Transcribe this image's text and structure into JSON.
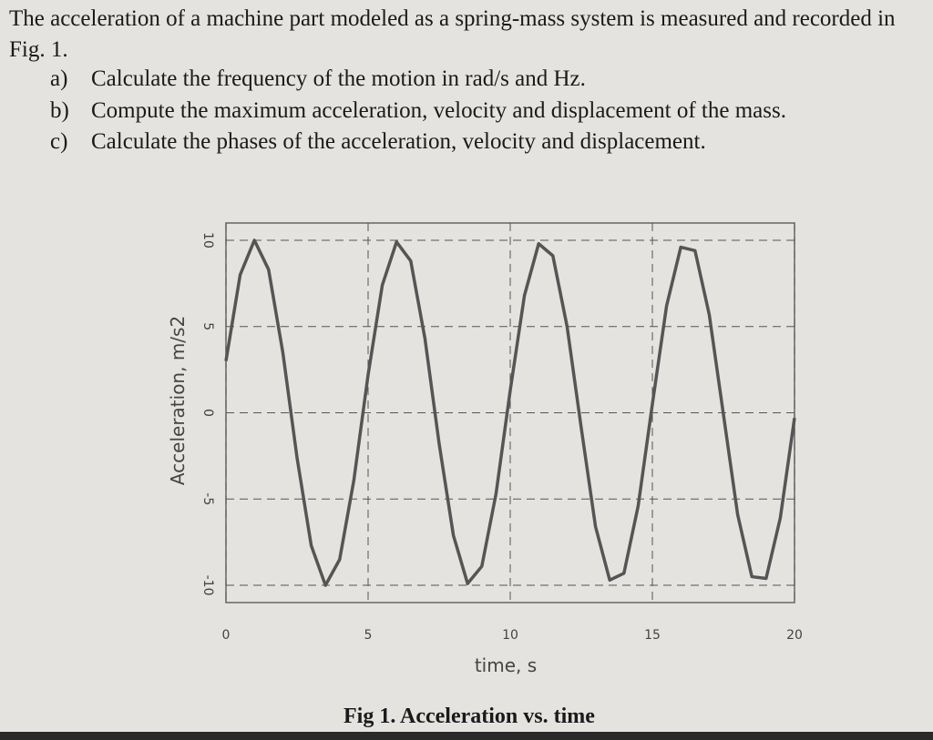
{
  "question": {
    "intro": "The acceleration of a machine part modeled as a spring-mass system is measured and recorded in Fig. 1.",
    "parts": [
      {
        "label": "a)",
        "text": "Calculate the frequency of the motion in rad/s and Hz."
      },
      {
        "label": "b)",
        "text": "Compute the maximum acceleration, velocity and displacement of the mass."
      },
      {
        "label": "c)",
        "text": "Calculate the phases of the acceleration, velocity and displacement."
      }
    ]
  },
  "chart_data": {
    "type": "line",
    "x_label": "time, s",
    "y_label": "Acceleration, m/s2",
    "x": [
      0,
      0.5,
      1,
      1.5,
      2,
      2.5,
      3,
      3.5,
      4,
      4.5,
      5,
      5.5,
      6,
      6.5,
      7,
      7.5,
      8,
      8.5,
      9,
      9.5,
      10,
      10.5,
      11,
      11.5,
      12,
      12.5,
      13,
      13.5,
      14,
      14.5,
      15,
      15.5,
      16,
      16.5,
      17,
      17.5,
      18,
      18.5,
      19,
      19.5,
      20
    ],
    "values": [
      3.0,
      8.0,
      10.0,
      8.3,
      3.5,
      -2.6,
      -7.7,
      -10.0,
      -8.5,
      -3.9,
      2.2,
      7.4,
      9.9,
      8.8,
      4.3,
      -1.8,
      -7.1,
      -9.9,
      -8.9,
      -4.7,
      1.3,
      6.8,
      9.8,
      9.1,
      5.0,
      -0.9,
      -6.6,
      -9.7,
      -9.3,
      -5.4,
      0.5,
      6.2,
      9.6,
      9.4,
      5.7,
      -0.1,
      -5.9,
      -9.5,
      -9.6,
      -6.1,
      -0.3
    ],
    "color": "#555555",
    "xlim": [
      0,
      20
    ],
    "xticks": [
      0,
      5,
      10,
      15,
      20
    ],
    "ylim": [
      -11,
      11
    ],
    "yticks": [
      -10,
      -5,
      0,
      5,
      10
    ],
    "grid": true
  },
  "figure_caption": "Fig 1. Acceleration vs. time"
}
